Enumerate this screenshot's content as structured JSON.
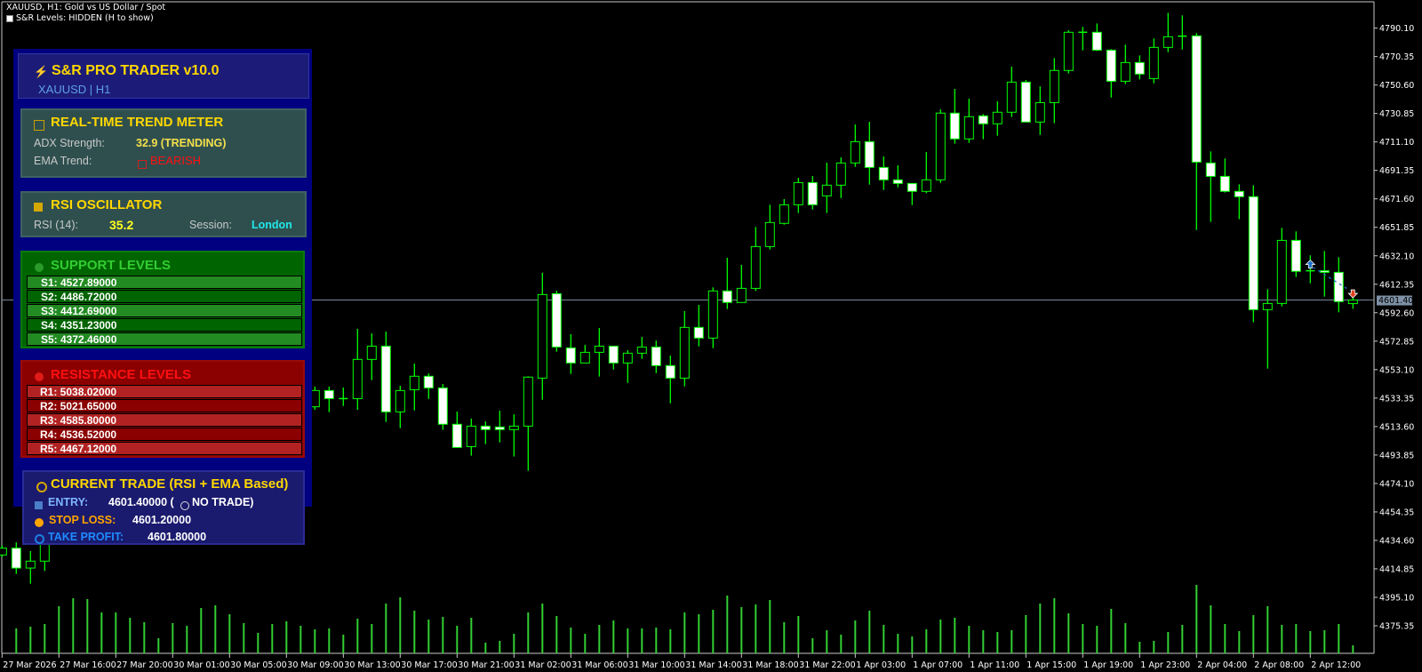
{
  "window": {
    "title": "XAUUSD, H1:  Gold vs US Dollar / Spot",
    "status_line": "S&R Levels: HIDDEN (H to show)"
  },
  "panel": {
    "header": {
      "title": "S&R PRO TRADER v10.0",
      "subtitle": "XAUUSD | H1",
      "icon": "lightning-icon"
    },
    "trend_meter": {
      "title": "REAL-TIME TREND METER",
      "adx_label": "ADX Strength:",
      "adx_value": "32.9 (TRENDING)",
      "ema_label": "EMA Trend:",
      "ema_value": "BEARISH"
    },
    "rsi": {
      "title": "RSI OSCILLATOR",
      "rsi_label": "RSI (14):",
      "rsi_value": "35.2",
      "session_label": "Session:",
      "session_value": "London"
    },
    "support": {
      "title": "SUPPORT LEVELS",
      "levels": [
        "S1: 4527.89000",
        "S2: 4486.72000",
        "S3: 4412.69000",
        "S4: 4351.23000",
        "S5: 4372.46000"
      ]
    },
    "resistance": {
      "title": "RESISTANCE LEVELS",
      "levels": [
        "R1: 5038.02000",
        "R2: 5021.65000",
        "R3: 4585.80000",
        "R4: 4536.52000",
        "R5: 4467.12000"
      ]
    },
    "trade": {
      "title": "CURRENT TRADE (RSI + EMA Based)",
      "entry_label": "ENTRY:",
      "entry_value": "4601.40000 (",
      "entry_status": "NO TRADE)",
      "sl_label": "STOP LOSS:",
      "sl_value": "4601.20000",
      "tp_label": "TAKE PROFIT:",
      "tp_value": "4601.80000"
    }
  },
  "colors": {
    "candle_outline": "#00ff00",
    "bull_body": "#000000",
    "bear_body": "#ffffff",
    "volume": "#32cd32",
    "price_line": "#778899",
    "panel_bg": "#000080",
    "accent_gold": "#ffd700",
    "support_bg": "#006400",
    "resistance_bg": "#8b0000"
  },
  "chart_data": {
    "type": "candlestick",
    "symbol": "XAUUSD",
    "timeframe": "H1",
    "grid": false,
    "ylim": [
      4367.0,
      4810.0
    ],
    "current_price": "4601.40",
    "y_ticks": [
      "4790.10",
      "4770.35",
      "4750.60",
      "4730.85",
      "4711.10",
      "4691.35",
      "4671.60",
      "4651.85",
      "4632.10",
      "4612.35",
      "4592.60",
      "4572.85",
      "4553.10",
      "4533.35",
      "4513.60",
      "4493.85",
      "4474.10",
      "4454.35",
      "4434.60",
      "4414.85",
      "4395.10",
      "4375.35"
    ],
    "x_ticks": [
      "27 Mar 2026",
      "27 Mar 16:00",
      "27 Mar 20:00",
      "30 Mar 01:00",
      "30 Mar 05:00",
      "30 Mar 09:00",
      "30 Mar 13:00",
      "30 Mar 17:00",
      "30 Mar 21:00",
      "31 Mar 02:00",
      "31 Mar 06:00",
      "31 Mar 10:00",
      "31 Mar 14:00",
      "31 Mar 18:00",
      "31 Mar 22:00",
      "1 Apr 03:00",
      "1 Apr 07:00",
      "1 Apr 11:00",
      "1 Apr 15:00",
      "1 Apr 19:00",
      "1 Apr 23:00",
      "2 Apr 04:00",
      "2 Apr 08:00",
      "2 Apr 12:00"
    ],
    "ohlc_columns": [
      "open",
      "high",
      "low",
      "close"
    ],
    "candles": [
      [
        4424.5,
        4431.0,
        4423.0,
        4429.2
      ],
      [
        4429.2,
        4433.3,
        4411.3,
        4415.4
      ],
      [
        4415.4,
        4427.2,
        4404.5,
        4420.2
      ],
      [
        4420.2,
        4435.6,
        4413.4,
        4432.7
      ],
      null,
      null,
      null,
      null,
      null,
      null,
      null,
      null,
      null,
      null,
      null,
      null,
      null,
      null,
      null,
      null,
      null,
      null,
      [
        4527.3,
        4541.3,
        4525.2,
        4538.6
      ],
      [
        4538.6,
        4541.3,
        4523.6,
        4533.0
      ],
      [
        4533.0,
        4540.7,
        4527.9,
        4533.0
      ],
      [
        4533.0,
        4581.4,
        4525.2,
        4560.2
      ],
      [
        4560.2,
        4578.3,
        4545.8,
        4569.4
      ],
      [
        4569.4,
        4579.5,
        4516.8,
        4523.8
      ],
      [
        4523.8,
        4541.9,
        4512.5,
        4538.6
      ],
      [
        4539.2,
        4557.3,
        4524.8,
        4548.5
      ],
      [
        4548.5,
        4550.5,
        4532.8,
        4540.4
      ],
      [
        4540.4,
        4543.1,
        4511.3,
        4515.2
      ],
      [
        4515.2,
        4524.0,
        4499.1,
        4499.1
      ],
      [
        4499.7,
        4519.1,
        4493.4,
        4513.9
      ],
      [
        4513.9,
        4517.2,
        4501.4,
        4511.5
      ],
      [
        4513.3,
        4524.6,
        4502.6,
        4511.5
      ],
      [
        4511.5,
        4522.1,
        4492.8,
        4513.9
      ],
      [
        4513.9,
        4548.5,
        4482.9,
        4547.9
      ],
      [
        4547.2,
        4620.2,
        4532.2,
        4605.2
      ],
      [
        4605.8,
        4607.9,
        4565.5,
        4568.8
      ],
      [
        4568.2,
        4577.7,
        4550.1,
        4557.7
      ],
      [
        4557.7,
        4570.3,
        4557.7,
        4565.1
      ],
      [
        4565.1,
        4582.0,
        4548.3,
        4569.4
      ],
      [
        4569.4,
        4569.4,
        4553.2,
        4557.7
      ],
      [
        4557.7,
        4566.6,
        4543.9,
        4564.5
      ],
      [
        4564.5,
        4575.8,
        4560.6,
        4568.8
      ],
      [
        4568.8,
        4573.3,
        4550.7,
        4555.9
      ],
      [
        4555.9,
        4562.9,
        4529.7,
        4547.2
      ],
      [
        4547.2,
        4593.7,
        4541.5,
        4582.4
      ],
      [
        4582.4,
        4598.0,
        4569.2,
        4575.0
      ],
      [
        4575.0,
        4610.2,
        4568.0,
        4607.7
      ],
      [
        4607.7,
        4630.7,
        4595.2,
        4599.7
      ],
      [
        4599.7,
        4625.8,
        4599.7,
        4609.5
      ],
      [
        4609.5,
        4652.1,
        4607.7,
        4638.5
      ],
      [
        4638.5,
        4667.5,
        4636.5,
        4655.2
      ],
      [
        4654.6,
        4671.4,
        4653.7,
        4667.5
      ],
      [
        4667.5,
        4686.2,
        4661.8,
        4682.9
      ],
      [
        4682.9,
        4687.5,
        4664.2,
        4667.5
      ],
      [
        4673.7,
        4696.7,
        4661.8,
        4681.1
      ],
      [
        4681.1,
        4700.4,
        4672.2,
        4696.5
      ],
      [
        4696.5,
        4723.2,
        4693.8,
        4711.3
      ],
      [
        4711.3,
        4725.1,
        4681.5,
        4693.4
      ],
      [
        4693.4,
        4701.0,
        4677.8,
        4684.8
      ],
      [
        4684.8,
        4694.9,
        4679.6,
        4682.3
      ],
      [
        4682.3,
        4682.3,
        4667.3,
        4676.8
      ],
      [
        4676.8,
        4704.1,
        4675.5,
        4684.8
      ],
      [
        4684.8,
        4733.7,
        4682.7,
        4731.1
      ],
      [
        4731.1,
        4747.9,
        4709.9,
        4713.2
      ],
      [
        4713.2,
        4741.1,
        4710.5,
        4728.6
      ],
      [
        4729.2,
        4730.4,
        4713.0,
        4723.7
      ],
      [
        4723.7,
        4739.3,
        4715.4,
        4731.7
      ],
      [
        4731.7,
        4763.3,
        4728.4,
        4752.6
      ],
      [
        4752.6,
        4754.1,
        4724.9,
        4724.9
      ],
      [
        4724.9,
        4749.6,
        4716.0,
        4738.4
      ],
      [
        4738.4,
        4769.3,
        4724.1,
        4760.7
      ],
      [
        4760.7,
        4788.6,
        4758.6,
        4787.2
      ],
      [
        4787.2,
        4790.9,
        4774.6,
        4787.2
      ],
      [
        4787.2,
        4793.3,
        4774.2,
        4774.8
      ],
      [
        4774.8,
        4775.5,
        4741.9,
        4753.2
      ],
      [
        4753.2,
        4778.6,
        4751.2,
        4766.2
      ],
      [
        4766.2,
        4771.1,
        4754.5,
        4758.2
      ],
      [
        4755.1,
        4782.9,
        4751.8,
        4776.7
      ],
      [
        4776.7,
        4800.7,
        4773.4,
        4784.1
      ],
      [
        4784.5,
        4798.9,
        4775.3,
        4784.5
      ],
      [
        4784.7,
        4786.6,
        4650.0,
        4697.1
      ],
      [
        4696.5,
        4704.5,
        4655.6,
        4687.2
      ],
      [
        4687.2,
        4699.6,
        4676.0,
        4676.8
      ],
      [
        4676.8,
        4681.7,
        4657.5,
        4673.1
      ],
      [
        4673.1,
        4681.1,
        4585.9,
        4594.7
      ],
      [
        4594.7,
        4608.9,
        4553.8,
        4599.0
      ],
      [
        4599.0,
        4651.5,
        4597.0,
        4642.8
      ],
      [
        4642.8,
        4649.0,
        4617.4,
        4621.3
      ],
      [
        4621.7,
        4632.4,
        4613.0,
        4621.7
      ],
      [
        4621.7,
        4635.4,
        4603.8,
        4620.6
      ],
      [
        4620.6,
        4631.1,
        4592.9,
        4600.3
      ],
      [
        4598.9,
        4604.5,
        4595.3,
        4601.4
      ]
    ],
    "volume": [
      null,
      28,
      30,
      33,
      53,
      62,
      61,
      46,
      46,
      40,
      35,
      17,
      34,
      31,
      51,
      54,
      44,
      34,
      23,
      33,
      36,
      31,
      27,
      28,
      21,
      39,
      33,
      56,
      63,
      48,
      38,
      41,
      31,
      40,
      12,
      14,
      22,
      46,
      56,
      42,
      29,
      22,
      32,
      37,
      28,
      28,
      29,
      27,
      46,
      44,
      49,
      65,
      52,
      55,
      60,
      35,
      42,
      17,
      26,
      21,
      37,
      48,
      32,
      22,
      19,
      27,
      38,
      40,
      31,
      26,
      24,
      26,
      43,
      56,
      62,
      45,
      33,
      31,
      50,
      34,
      13,
      14,
      24,
      32,
      77,
      54,
      33,
      25,
      43,
      53,
      32,
      33,
      25,
      26,
      33,
      9
    ],
    "trade_markers": [
      {
        "type": "buy-arrow",
        "bar": 92,
        "price": 4626.0,
        "color": "#1e6ec8"
      },
      {
        "type": "sell-arrow",
        "bar": 95,
        "price": 4606.0,
        "color": "#e04020"
      }
    ]
  }
}
